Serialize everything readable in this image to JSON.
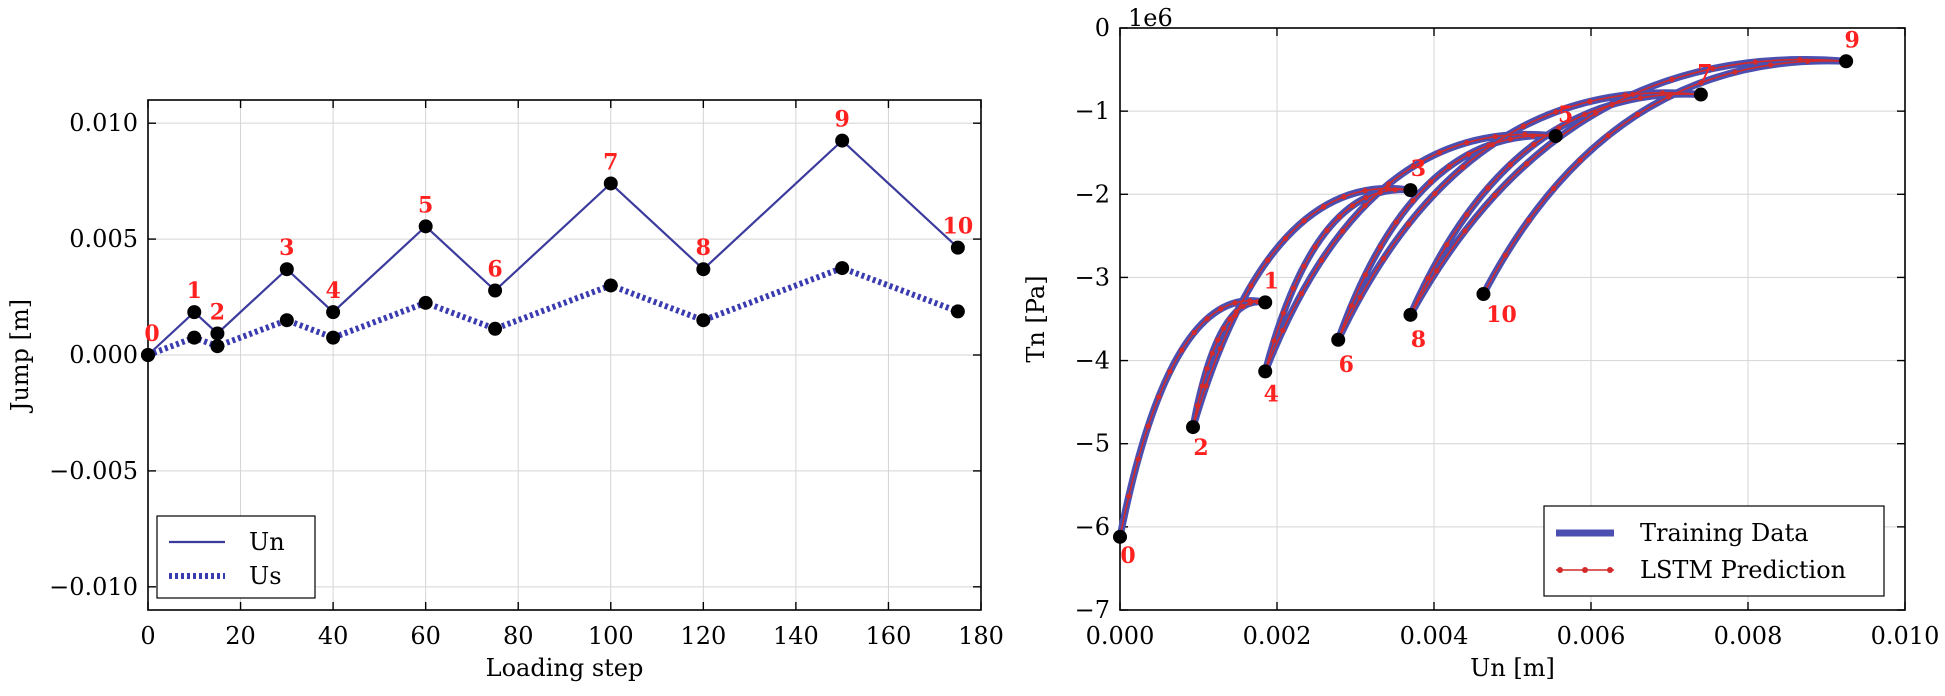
{
  "chart_data": [
    {
      "type": "line",
      "xlabel": "Loading step",
      "ylabel": "Jump [m]",
      "xlim": [
        0,
        180
      ],
      "ylim": [
        -0.011,
        0.011
      ],
      "xticks": [
        0,
        20,
        40,
        60,
        80,
        100,
        120,
        140,
        160,
        180
      ],
      "xtick_labels": [
        "0",
        "20",
        "40",
        "60",
        "80",
        "100",
        "120",
        "140",
        "160",
        "180"
      ],
      "yticks": [
        -0.01,
        -0.005,
        0.0,
        0.005,
        0.01
      ],
      "ytick_labels": [
        "−0.010",
        "−0.005",
        "0.000",
        "0.005",
        "0.010"
      ],
      "grid": true,
      "legend_position": "bottom-left",
      "x": [
        0,
        10,
        15,
        30,
        40,
        60,
        75,
        100,
        120,
        150,
        175
      ],
      "series": [
        {
          "name": "Un",
          "style": "solid",
          "color": "#3b3b9e",
          "values": [
            0.0,
            0.00185,
            0.00093,
            0.0037,
            0.00185,
            0.00555,
            0.00278,
            0.0074,
            0.0037,
            0.00925,
            0.00463
          ]
        },
        {
          "name": "Us",
          "style": "dotted",
          "color": "#3b3bb0",
          "values": [
            0.0,
            0.00075,
            0.00038,
            0.0015,
            0.00075,
            0.00225,
            0.00113,
            0.003,
            0.0015,
            0.00375,
            0.00188
          ]
        }
      ],
      "point_labels": [
        "0",
        "1",
        "2",
        "3",
        "4",
        "5",
        "6",
        "7",
        "8",
        "9",
        "10"
      ],
      "point_label_color": "#ff2020"
    },
    {
      "type": "line",
      "xlabel": "Un [m]",
      "ylabel": "Tn [Pa]",
      "y_scale_label": "1e6",
      "xlim": [
        0.0,
        0.01
      ],
      "ylim": [
        -7,
        0
      ],
      "xticks": [
        0.0,
        0.002,
        0.004,
        0.006,
        0.008,
        0.01
      ],
      "xtick_labels": [
        "0.000",
        "0.002",
        "0.004",
        "0.006",
        "0.008",
        "0.010"
      ],
      "yticks": [
        -7,
        -6,
        -5,
        -4,
        -3,
        -2,
        -1,
        0
      ],
      "ytick_labels": [
        "−7",
        "−6",
        "−5",
        "−4",
        "−3",
        "−2",
        "−1",
        "0"
      ],
      "grid": true,
      "legend_position": "bottom-right",
      "legend": [
        "Training Data",
        "LSTM Prediction"
      ],
      "series_colors": {
        "training": "#4a4fb0",
        "prediction": "#d42a2a"
      },
      "points": [
        {
          "label": "0",
          "x": 0.0,
          "y": -6.12
        },
        {
          "label": "1",
          "x": 0.00185,
          "y": -3.3
        },
        {
          "label": "2",
          "x": 0.00093,
          "y": -4.8
        },
        {
          "label": "3",
          "x": 0.0037,
          "y": -1.95
        },
        {
          "label": "4",
          "x": 0.00185,
          "y": -4.13
        },
        {
          "label": "5",
          "x": 0.00555,
          "y": -1.3
        },
        {
          "label": "6",
          "x": 0.00278,
          "y": -3.75
        },
        {
          "label": "7",
          "x": 0.0074,
          "y": -0.8
        },
        {
          "label": "8",
          "x": 0.0037,
          "y": -3.45
        },
        {
          "label": "9",
          "x": 0.00925,
          "y": -0.4
        },
        {
          "label": "10",
          "x": 0.00463,
          "y": -3.2
        }
      ],
      "path_order": [
        "0",
        "1",
        "2",
        "3",
        "4",
        "5",
        "6",
        "7",
        "8",
        "9",
        "10"
      ]
    }
  ]
}
